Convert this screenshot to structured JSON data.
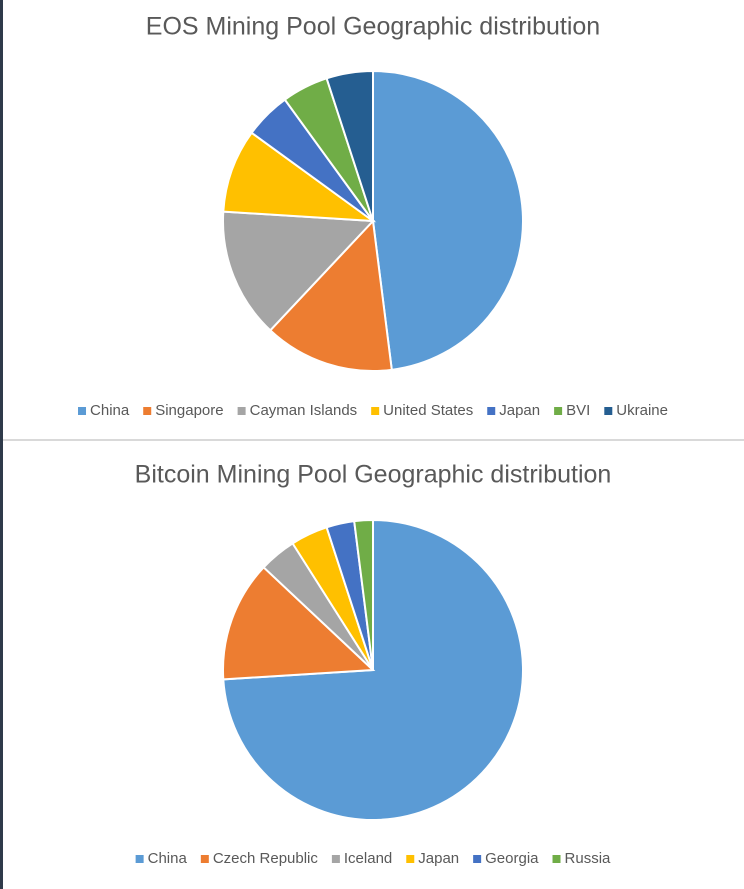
{
  "chart_data": [
    {
      "type": "pie",
      "title": "EOS Mining Pool Geographic distribution",
      "categories": [
        "China",
        "Singapore",
        "Cayman Islands",
        "United States",
        "Japan",
        "BVI",
        "Ukraine"
      ],
      "values": [
        48,
        14,
        14,
        9,
        5,
        5,
        5
      ],
      "colors": [
        "#5b9bd5",
        "#ed7d31",
        "#a5a5a5",
        "#ffc000",
        "#4472c4",
        "#70ad47",
        "#255e91"
      ],
      "legend": "bottom"
    },
    {
      "type": "pie",
      "title": "Bitcoin Mining Pool Geographic distribution",
      "categories": [
        "China",
        "Czech Republic",
        "Iceland",
        "Japan",
        "Georgia",
        "Russia"
      ],
      "values": [
        74,
        13,
        4,
        4,
        3,
        2
      ],
      "colors": [
        "#5b9bd5",
        "#ed7d31",
        "#a5a5a5",
        "#ffc000",
        "#4472c4",
        "#70ad47"
      ],
      "legend": "bottom"
    }
  ]
}
